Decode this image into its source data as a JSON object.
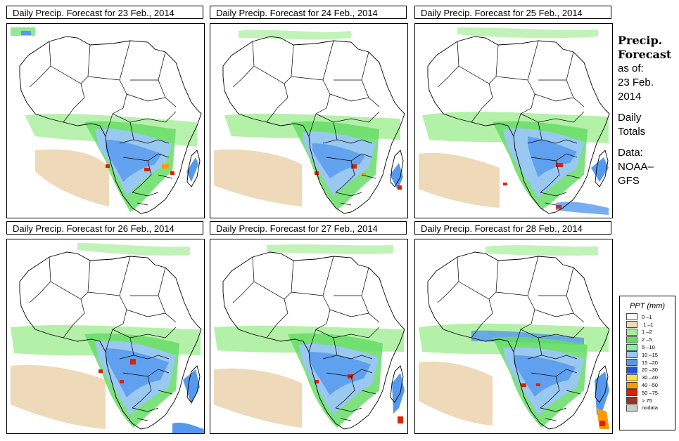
{
  "panels": [
    {
      "title": "Daily Precip. Forecast for  23 Feb., 2014"
    },
    {
      "title": "Daily Precip. Forecast for  24 Feb., 2014"
    },
    {
      "title": "Daily Precip. Forecast for  25 Feb., 2014"
    },
    {
      "title": "Daily Precip. Forecast for  26 Feb., 2014"
    },
    {
      "title": "Daily Precip. Forecast for  27 Feb., 2014"
    },
    {
      "title": "Daily Precip. Forecast for  28 Feb., 2014"
    }
  ],
  "side": {
    "heading_1": "Precip.",
    "heading_2": "Forecast",
    "as_of": "as of:",
    "date_1": "23 Feb.",
    "date_2": "2014",
    "daily": "Daily",
    "totals": "Totals",
    "data_label": "Data:",
    "source_1": "NOAA–",
    "source_2": "GFS"
  },
  "legend": {
    "title": "PPT (mm)",
    "items": [
      {
        "label": "0 –1",
        "color": "#ffffff"
      },
      {
        "label": ".1 –1",
        "color": "#eed9b8"
      },
      {
        "label": "1 –2",
        "color": "#a6ee9a"
      },
      {
        "label": "2 –5",
        "color": "#66dd66"
      },
      {
        "label": "5 –10",
        "color": "#88eeaa"
      },
      {
        "label": "10 –15",
        "color": "#99c8f0"
      },
      {
        "label": "15 –20",
        "color": "#5599ee"
      },
      {
        "label": "20 –30",
        "color": "#2255dd"
      },
      {
        "label": "30 –40",
        "color": "#ffdd55"
      },
      {
        "label": "40 –50",
        "color": "#ff9900"
      },
      {
        "label": "50 –75",
        "color": "#dd2200"
      },
      {
        "label": "> 75",
        "color": "#993322"
      },
      {
        "label": "nodata",
        "color": "#cccccc"
      }
    ]
  }
}
